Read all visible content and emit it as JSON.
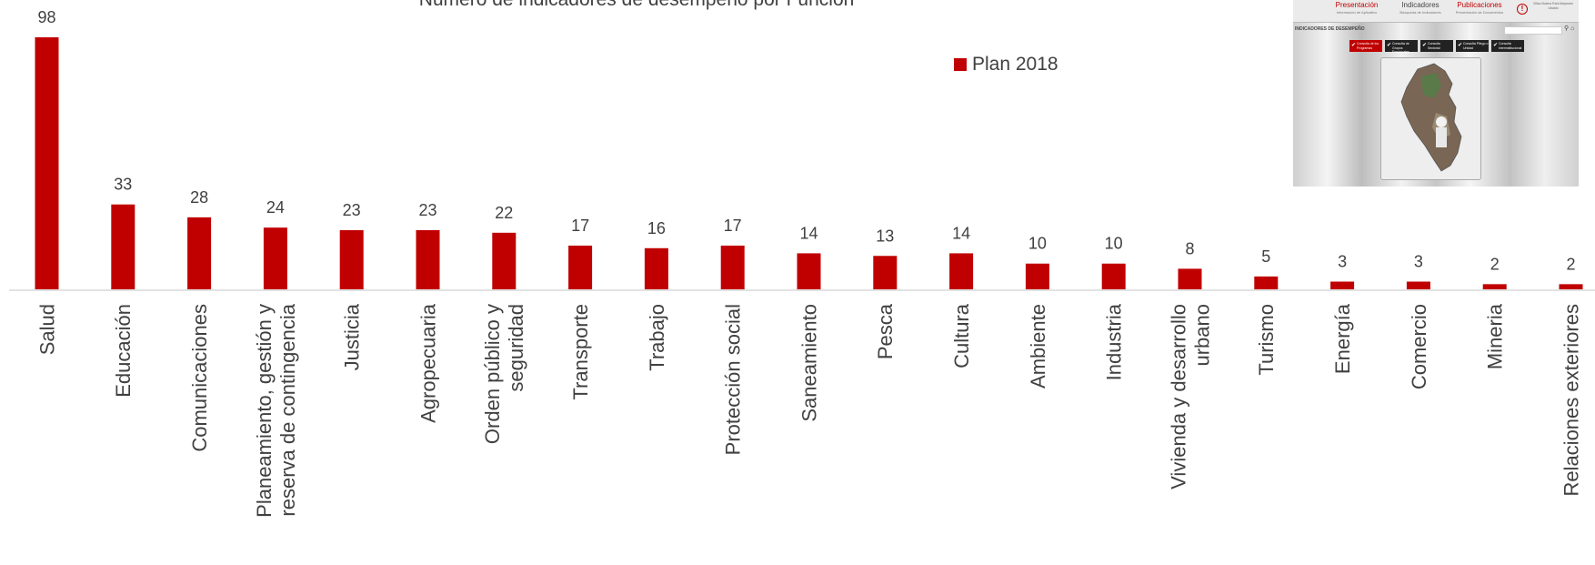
{
  "chart_data": {
    "type": "bar",
    "title": "Número de indicadores de desempeño por Función",
    "categories": [
      "Salud",
      "Educación",
      "Comunicaciones",
      "Planeamiento, gestión y reserva de contingencia",
      "Justicia",
      "Agropecuaria",
      "Orden público y seguridad",
      "Transporte",
      "Trabajo",
      "Protección social",
      "Saneamiento",
      "Pesca",
      "Cultura",
      "Ambiente",
      "Industria",
      "Vivienda y desarrollo urbano",
      "Turismo",
      "Energía",
      "Comercio",
      "Mineria",
      "Relaciones exteriores"
    ],
    "series": [
      {
        "name": "Plan 2018",
        "color": "#c00000",
        "values": [
          98,
          33,
          28,
          24,
          23,
          23,
          22,
          17,
          16,
          17,
          14,
          13,
          14,
          10,
          10,
          8,
          5,
          3,
          3,
          2,
          2
        ]
      }
    ],
    "ylim": [
      0,
      98
    ],
    "grid": false,
    "legend_position": "top-right",
    "colors": {
      "bar": "#c00000",
      "axis": "#d9d9d9",
      "text": "#404040"
    }
  },
  "thumbnail": {
    "tabs": [
      {
        "label": "Presentación",
        "sub": "Información de Aplicativo",
        "color": "#c00000"
      },
      {
        "label": "Indicadores",
        "sub": "Búsqueda de Indicadores",
        "color": "#444444"
      },
      {
        "label": "Publicaciones",
        "sub": "Presentación de Documentos",
        "color": "#c00000"
      }
    ],
    "alert_glyph": "!",
    "user_text": "Villao Bustos Raúl Alejandro Ubaldo",
    "heading": "INDICADORES DE DESEMPEÑO",
    "tools": "⚲ ⌂",
    "buttons": [
      {
        "label": "Consulta de los Programas",
        "color": "#c00000"
      },
      {
        "label": "Consulta de Grupos Funcionales",
        "color": "#222222"
      },
      {
        "label": "Consulta Sectorial",
        "color": "#222222"
      },
      {
        "label": "Consulta Pliego o Unidad",
        "color": "#222222"
      },
      {
        "label": "Consulta Interinstitucional",
        "color": "#222222"
      }
    ],
    "check_glyph": "✔"
  }
}
